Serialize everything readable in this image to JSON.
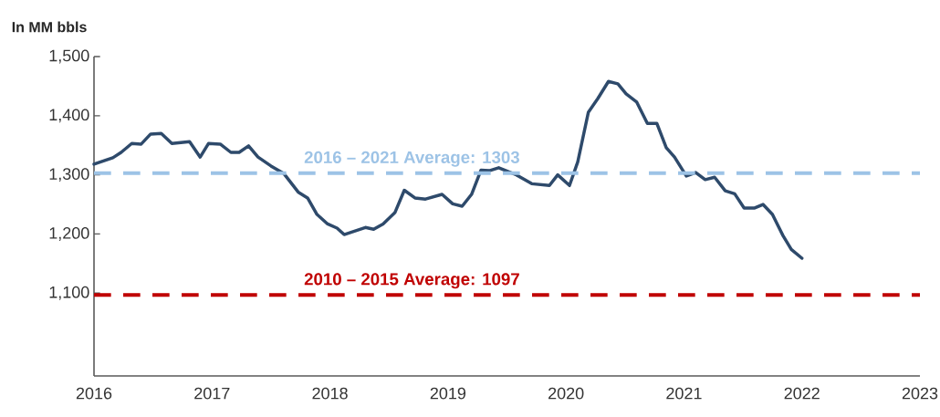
{
  "chart_data": {
    "type": "line",
    "ylabel": "In MM bbls",
    "x": [
      2016.0,
      2016.16,
      2016.23,
      2016.32,
      2016.4,
      2016.48,
      2016.57,
      2016.66,
      2016.81,
      2016.9,
      2016.97,
      2017.07,
      2017.16,
      2017.23,
      2017.31,
      2017.39,
      2017.5,
      2017.61,
      2017.73,
      2017.81,
      2017.89,
      2017.98,
      2018.06,
      2018.12,
      2018.3,
      2018.37,
      2018.45,
      2018.55,
      2018.63,
      2018.72,
      2018.81,
      2018.95,
      2019.04,
      2019.12,
      2019.2,
      2019.28,
      2019.35,
      2019.43,
      2019.58,
      2019.71,
      2019.86,
      2019.93,
      2020.03,
      2020.1,
      2020.19,
      2020.27,
      2020.36,
      2020.44,
      2020.51,
      2020.6,
      2020.69,
      2020.77,
      2020.85,
      2020.92,
      2021.02,
      2021.1,
      2021.18,
      2021.26,
      2021.35,
      2021.43,
      2021.51,
      2021.6,
      2021.67,
      2021.75,
      2021.84,
      2021.91,
      2022.0
    ],
    "series": [
      {
        "color": "#2e4a6b",
        "values": [
          1318,
          1329,
          1338,
          1353,
          1352,
          1369,
          1370,
          1353,
          1356,
          1330,
          1353,
          1352,
          1338,
          1338,
          1349,
          1330,
          1315,
          1302,
          1271,
          1261,
          1233,
          1217,
          1210,
          1199,
          1211,
          1208,
          1217,
          1236,
          1274,
          1261,
          1259,
          1267,
          1251,
          1247,
          1267,
          1308,
          1307,
          1312,
          1300,
          1285,
          1282,
          1300,
          1282,
          1322,
          1406,
          1429,
          1458,
          1454,
          1437,
          1423,
          1387,
          1387,
          1346,
          1330,
          1298,
          1304,
          1292,
          1296,
          1273,
          1268,
          1244,
          1244,
          1250,
          1233,
          1197,
          1174,
          1159
        ]
      }
    ],
    "xlim": [
      2016,
      2023
    ],
    "xticks": [
      2016,
      2017,
      2018,
      2019,
      2020,
      2021,
      2022,
      2023
    ],
    "ylim": [
      960,
      1500
    ],
    "yticks": [
      {
        "value": 1100,
        "label": "1,100"
      },
      {
        "value": 1200,
        "label": "1,200"
      },
      {
        "value": 1300,
        "label": "1,300"
      },
      {
        "value": 1400,
        "label": "1,400"
      },
      {
        "value": 1500,
        "label": "1,500"
      }
    ],
    "ref_lines": [
      {
        "axis": "y",
        "value": 1303,
        "label": "2016 – 2021 Average: 1303",
        "color": "#9dc3e6",
        "line_style": "dashed"
      },
      {
        "axis": "y",
        "value": 1097,
        "label": "2010 – 2015 Average: 1097",
        "color": "#c00000",
        "line_style": "dashed"
      }
    ]
  }
}
